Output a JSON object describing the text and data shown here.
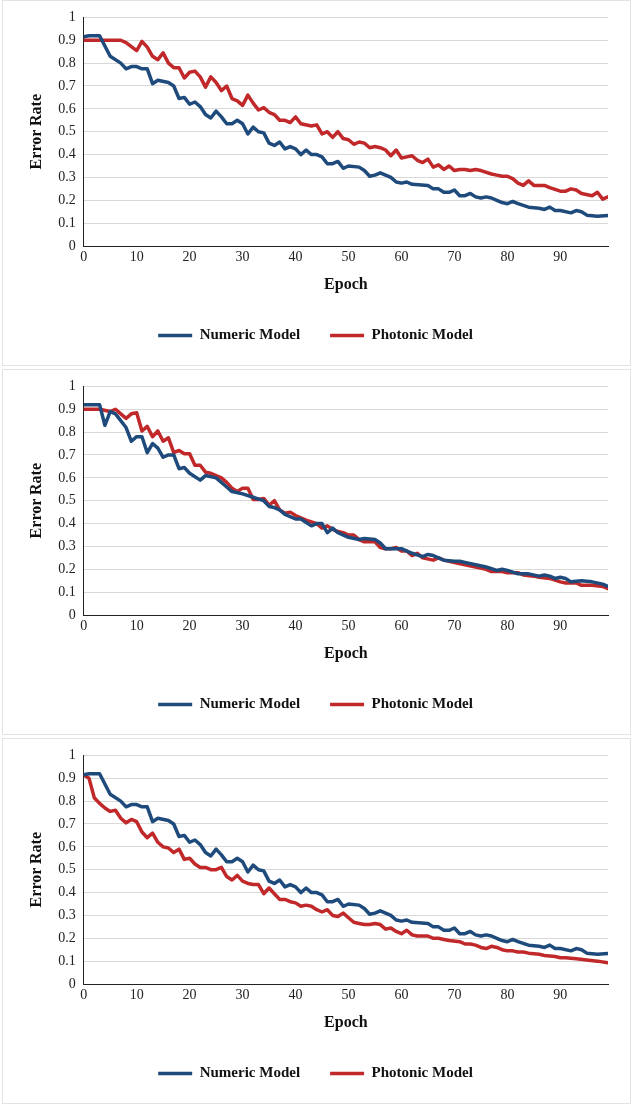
{
  "chart_data": [
    {
      "type": "line",
      "xlabel": "Epoch",
      "ylabel": "Error Rate",
      "xlim": [
        0,
        99
      ],
      "xticks": [
        0,
        10,
        20,
        30,
        40,
        50,
        60,
        70,
        80,
        90
      ],
      "ylim": [
        0,
        1
      ],
      "yticks": [
        0,
        0.1,
        0.2,
        0.3,
        0.4,
        0.5,
        0.6,
        0.7,
        0.8,
        0.9,
        1
      ],
      "grid": "y",
      "legend": "bottom",
      "marker": "none",
      "line_style": "solid",
      "series": [
        {
          "name": "Numeric Model",
          "color": "#1f4a7c",
          "x": [
            0,
            1,
            3,
            5,
            7,
            8,
            9,
            10,
            11,
            12,
            13,
            14,
            16,
            17,
            18,
            19,
            20,
            21,
            22,
            23,
            24,
            25,
            26,
            27,
            28,
            29,
            30,
            31,
            32,
            33,
            34,
            35,
            36,
            37,
            38,
            39,
            40,
            41,
            42,
            43,
            44,
            45,
            46,
            47,
            48,
            49,
            50,
            52,
            53,
            54,
            55,
            56,
            58,
            59,
            60,
            61,
            62,
            65,
            66,
            67,
            68,
            69,
            70,
            71,
            72,
            73,
            74,
            75,
            76,
            77,
            78,
            79,
            80,
            81,
            82,
            84,
            86,
            87,
            88,
            89,
            90,
            92,
            93,
            94,
            95,
            97,
            99
          ],
          "values": [
            0.915,
            0.92,
            0.92,
            0.83,
            0.8,
            0.775,
            0.785,
            0.785,
            0.775,
            0.775,
            0.71,
            0.725,
            0.715,
            0.7,
            0.645,
            0.65,
            0.62,
            0.63,
            0.61,
            0.575,
            0.56,
            0.59,
            0.565,
            0.535,
            0.535,
            0.55,
            0.535,
            0.49,
            0.52,
            0.5,
            0.495,
            0.45,
            0.44,
            0.455,
            0.425,
            0.435,
            0.425,
            0.4,
            0.42,
            0.4,
            0.4,
            0.39,
            0.36,
            0.36,
            0.37,
            0.34,
            0.35,
            0.345,
            0.33,
            0.305,
            0.31,
            0.32,
            0.3,
            0.28,
            0.275,
            0.28,
            0.27,
            0.265,
            0.25,
            0.25,
            0.235,
            0.235,
            0.245,
            0.22,
            0.22,
            0.23,
            0.215,
            0.21,
            0.215,
            0.21,
            0.2,
            0.19,
            0.185,
            0.195,
            0.185,
            0.17,
            0.165,
            0.16,
            0.17,
            0.155,
            0.155,
            0.145,
            0.155,
            0.15,
            0.135,
            0.13,
            0.133
          ]
        },
        {
          "name": "Photonic Model",
          "color": "#c0282a",
          "x": [
            0,
            7,
            8,
            10,
            11,
            12,
            13,
            14,
            15,
            16,
            17,
            18,
            19,
            20,
            21,
            22,
            23,
            24,
            25,
            26,
            27,
            28,
            29,
            30,
            31,
            32,
            33,
            34,
            35,
            36,
            37,
            38,
            39,
            40,
            41,
            43,
            44,
            45,
            46,
            47,
            48,
            49,
            50,
            51,
            52,
            53,
            54,
            55,
            56,
            57,
            58,
            59,
            60,
            61,
            62,
            63,
            64,
            65,
            66,
            67,
            68,
            69,
            70,
            71,
            72,
            73,
            74,
            75,
            77,
            78,
            79,
            80,
            81,
            82,
            83,
            84,
            85,
            87,
            88,
            90,
            91,
            92,
            93,
            94,
            96,
            97,
            98,
            99
          ],
          "values": [
            0.9,
            0.9,
            0.89,
            0.855,
            0.895,
            0.87,
            0.83,
            0.815,
            0.845,
            0.8,
            0.78,
            0.78,
            0.735,
            0.76,
            0.765,
            0.74,
            0.695,
            0.74,
            0.715,
            0.68,
            0.7,
            0.645,
            0.635,
            0.615,
            0.66,
            0.625,
            0.595,
            0.605,
            0.585,
            0.575,
            0.55,
            0.55,
            0.54,
            0.565,
            0.535,
            0.525,
            0.53,
            0.49,
            0.5,
            0.475,
            0.5,
            0.47,
            0.465,
            0.445,
            0.455,
            0.45,
            0.43,
            0.435,
            0.43,
            0.42,
            0.395,
            0.42,
            0.385,
            0.39,
            0.395,
            0.375,
            0.365,
            0.38,
            0.345,
            0.355,
            0.335,
            0.35,
            0.33,
            0.335,
            0.335,
            0.33,
            0.335,
            0.33,
            0.315,
            0.31,
            0.305,
            0.305,
            0.295,
            0.275,
            0.265,
            0.285,
            0.265,
            0.265,
            0.255,
            0.24,
            0.24,
            0.25,
            0.245,
            0.23,
            0.22,
            0.235,
            0.205,
            0.215
          ]
        }
      ]
    },
    {
      "type": "line",
      "xlabel": "Epoch",
      "ylabel": "Error Rate",
      "xlim": [
        0,
        99
      ],
      "xticks": [
        0,
        10,
        20,
        30,
        40,
        50,
        60,
        70,
        80,
        90
      ],
      "ylim": [
        0,
        1
      ],
      "yticks": [
        0,
        0.1,
        0.2,
        0.3,
        0.4,
        0.5,
        0.6,
        0.7,
        0.8,
        0.9,
        1
      ],
      "grid": "y",
      "legend": "bottom",
      "marker": "none",
      "line_style": "solid",
      "series": [
        {
          "name": "Numeric Model",
          "color": "#1f4a7c",
          "x": [
            0,
            3,
            4,
            5,
            6,
            8,
            9,
            10,
            11,
            12,
            13,
            14,
            15,
            16,
            17,
            18,
            19,
            20,
            22,
            23,
            25,
            27,
            28,
            30,
            32,
            34,
            35,
            36,
            37,
            38,
            40,
            41,
            43,
            44,
            45,
            46,
            47,
            48,
            50,
            52,
            53,
            55,
            56,
            57,
            59,
            60,
            62,
            64,
            65,
            66,
            68,
            70,
            71,
            72,
            74,
            76,
            78,
            79,
            80,
            82,
            84,
            86,
            87,
            88,
            89,
            90,
            91,
            92,
            94,
            96,
            98,
            99
          ],
          "values": [
            0.92,
            0.92,
            0.83,
            0.89,
            0.88,
            0.82,
            0.76,
            0.78,
            0.78,
            0.71,
            0.75,
            0.73,
            0.69,
            0.7,
            0.7,
            0.64,
            0.645,
            0.62,
            0.59,
            0.61,
            0.6,
            0.56,
            0.54,
            0.53,
            0.515,
            0.5,
            0.475,
            0.47,
            0.46,
            0.44,
            0.42,
            0.42,
            0.39,
            0.4,
            0.4,
            0.36,
            0.38,
            0.36,
            0.34,
            0.33,
            0.335,
            0.33,
            0.315,
            0.29,
            0.29,
            0.29,
            0.27,
            0.255,
            0.265,
            0.26,
            0.24,
            0.235,
            0.235,
            0.23,
            0.22,
            0.21,
            0.195,
            0.2,
            0.195,
            0.18,
            0.18,
            0.17,
            0.175,
            0.17,
            0.16,
            0.165,
            0.16,
            0.145,
            0.15,
            0.145,
            0.135,
            0.125
          ]
        },
        {
          "name": "Photonic Model",
          "color": "#c0282a",
          "x": [
            0,
            3,
            5,
            6,
            7,
            8,
            9,
            10,
            11,
            12,
            13,
            14,
            15,
            16,
            17,
            18,
            19,
            20,
            21,
            22,
            23,
            24,
            26,
            27,
            28,
            29,
            30,
            31,
            32,
            33,
            34,
            35,
            36,
            37,
            38,
            39,
            40,
            41,
            42,
            44,
            45,
            46,
            47,
            48,
            49,
            50,
            51,
            52,
            53,
            55,
            56,
            57,
            58,
            59,
            60,
            61,
            62,
            63,
            64,
            66,
            67,
            68,
            70,
            72,
            74,
            76,
            77,
            79,
            80,
            82,
            83,
            85,
            86,
            88,
            90,
            91,
            93,
            94,
            96,
            98,
            99
          ],
          "values": [
            0.9,
            0.9,
            0.89,
            0.9,
            0.88,
            0.86,
            0.88,
            0.885,
            0.805,
            0.825,
            0.78,
            0.805,
            0.76,
            0.775,
            0.71,
            0.72,
            0.705,
            0.705,
            0.655,
            0.655,
            0.625,
            0.62,
            0.6,
            0.58,
            0.555,
            0.54,
            0.555,
            0.555,
            0.505,
            0.505,
            0.51,
            0.48,
            0.5,
            0.46,
            0.445,
            0.45,
            0.435,
            0.425,
            0.415,
            0.4,
            0.38,
            0.39,
            0.375,
            0.365,
            0.36,
            0.35,
            0.35,
            0.33,
            0.32,
            0.32,
            0.295,
            0.29,
            0.29,
            0.295,
            0.28,
            0.28,
            0.26,
            0.27,
            0.25,
            0.24,
            0.25,
            0.24,
            0.23,
            0.22,
            0.21,
            0.2,
            0.19,
            0.19,
            0.185,
            0.185,
            0.175,
            0.17,
            0.165,
            0.16,
            0.145,
            0.14,
            0.14,
            0.13,
            0.13,
            0.125,
            0.115
          ]
        }
      ]
    },
    {
      "type": "line",
      "xlabel": "Epoch",
      "ylabel": "Error Rate",
      "xlim": [
        0,
        99
      ],
      "xticks": [
        0,
        10,
        20,
        30,
        40,
        50,
        60,
        70,
        80,
        90
      ],
      "ylim": [
        0,
        1
      ],
      "yticks": [
        0,
        0.1,
        0.2,
        0.3,
        0.4,
        0.5,
        0.6,
        0.7,
        0.8,
        0.9,
        1
      ],
      "grid": "y",
      "legend": "bottom",
      "marker": "none",
      "line_style": "solid",
      "series": [
        {
          "name": "Numeric Model",
          "color": "#1f4a7c",
          "x": [
            0,
            1,
            3,
            5,
            7,
            8,
            9,
            10,
            11,
            12,
            13,
            14,
            16,
            17,
            18,
            19,
            20,
            21,
            22,
            23,
            24,
            25,
            26,
            27,
            28,
            29,
            30,
            31,
            32,
            33,
            34,
            35,
            36,
            37,
            38,
            39,
            40,
            41,
            42,
            43,
            44,
            45,
            46,
            47,
            48,
            49,
            50,
            52,
            53,
            54,
            55,
            56,
            58,
            59,
            60,
            61,
            62,
            65,
            66,
            67,
            68,
            69,
            70,
            71,
            72,
            73,
            74,
            75,
            76,
            77,
            78,
            79,
            80,
            81,
            82,
            84,
            86,
            87,
            88,
            89,
            90,
            92,
            93,
            94,
            95,
            97,
            99
          ],
          "values": [
            0.915,
            0.92,
            0.92,
            0.83,
            0.8,
            0.775,
            0.785,
            0.785,
            0.775,
            0.775,
            0.71,
            0.725,
            0.715,
            0.7,
            0.645,
            0.65,
            0.62,
            0.63,
            0.61,
            0.575,
            0.56,
            0.59,
            0.565,
            0.535,
            0.535,
            0.55,
            0.535,
            0.49,
            0.52,
            0.5,
            0.495,
            0.45,
            0.44,
            0.455,
            0.425,
            0.435,
            0.425,
            0.4,
            0.42,
            0.4,
            0.4,
            0.39,
            0.36,
            0.36,
            0.37,
            0.34,
            0.35,
            0.345,
            0.33,
            0.305,
            0.31,
            0.32,
            0.3,
            0.28,
            0.275,
            0.28,
            0.27,
            0.265,
            0.25,
            0.25,
            0.235,
            0.235,
            0.245,
            0.22,
            0.22,
            0.23,
            0.215,
            0.21,
            0.215,
            0.21,
            0.2,
            0.19,
            0.185,
            0.195,
            0.185,
            0.17,
            0.165,
            0.16,
            0.17,
            0.155,
            0.155,
            0.145,
            0.155,
            0.15,
            0.135,
            0.13,
            0.133
          ]
        },
        {
          "name": "Photonic Model",
          "color": "#c0282a",
          "x": [
            0,
            1,
            2,
            3,
            4,
            5,
            6,
            7,
            8,
            9,
            10,
            11,
            12,
            13,
            14,
            15,
            16,
            17,
            18,
            19,
            20,
            21,
            22,
            23,
            24,
            25,
            26,
            27,
            28,
            29,
            30,
            31,
            32,
            33,
            34,
            35,
            36,
            37,
            38,
            39,
            40,
            41,
            42,
            43,
            44,
            45,
            46,
            47,
            48,
            49,
            50,
            51,
            52,
            53,
            54,
            55,
            56,
            57,
            58,
            59,
            60,
            61,
            62,
            63,
            65,
            66,
            67,
            68,
            69,
            71,
            72,
            73,
            74,
            75,
            76,
            77,
            78,
            79,
            80,
            81,
            82,
            83,
            84,
            86,
            87,
            89,
            90,
            91,
            93,
            95,
            97,
            99
          ],
          "values": [
            0.915,
            0.9,
            0.815,
            0.79,
            0.77,
            0.755,
            0.76,
            0.725,
            0.705,
            0.72,
            0.71,
            0.665,
            0.64,
            0.66,
            0.62,
            0.6,
            0.595,
            0.575,
            0.59,
            0.545,
            0.55,
            0.525,
            0.51,
            0.51,
            0.5,
            0.5,
            0.51,
            0.47,
            0.455,
            0.475,
            0.45,
            0.44,
            0.435,
            0.435,
            0.395,
            0.42,
            0.395,
            0.37,
            0.37,
            0.36,
            0.355,
            0.34,
            0.345,
            0.34,
            0.325,
            0.315,
            0.325,
            0.3,
            0.295,
            0.31,
            0.29,
            0.27,
            0.265,
            0.26,
            0.26,
            0.265,
            0.26,
            0.24,
            0.245,
            0.23,
            0.22,
            0.235,
            0.215,
            0.21,
            0.21,
            0.2,
            0.2,
            0.195,
            0.19,
            0.185,
            0.175,
            0.175,
            0.17,
            0.16,
            0.155,
            0.165,
            0.16,
            0.15,
            0.145,
            0.145,
            0.14,
            0.14,
            0.135,
            0.13,
            0.125,
            0.12,
            0.115,
            0.115,
            0.11,
            0.105,
            0.1,
            0.093
          ]
        }
      ]
    }
  ]
}
